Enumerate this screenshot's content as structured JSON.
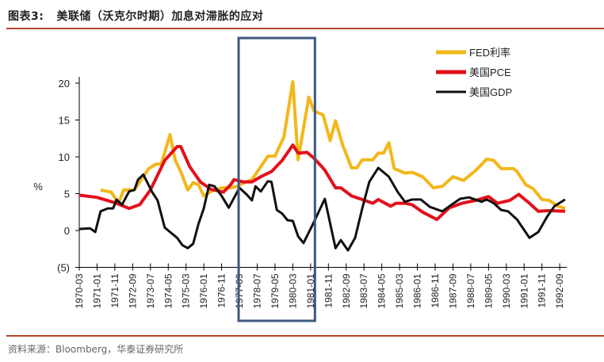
{
  "header": {
    "figure_number": "图表3:",
    "title": "美联储（沃克尔时期）加息对滞胀的应对"
  },
  "footer": {
    "source": "资料来源：Bloomberg，华泰证券研究所"
  },
  "chart_data": {
    "type": "line",
    "title": "",
    "xlabel": "",
    "ylabel": "%",
    "ylim": [
      -5,
      20
    ],
    "yticks": [
      20,
      15,
      10,
      5,
      0,
      -5
    ],
    "ytick_labels": [
      "20",
      "15",
      "10",
      "5",
      "0",
      "(5)"
    ],
    "negative_tick_color": "#d0021b",
    "xticks": [
      "1970-03",
      "1971-01",
      "1971-11",
      "1972-09",
      "1973-07",
      "1974-05",
      "1975-03",
      "1976-01",
      "1976-11",
      "1977-09",
      "1978-07",
      "1979-05",
      "1980-03",
      "1981-01",
      "1981-11",
      "1982-09",
      "1983-07",
      "1984-05",
      "1985-03",
      "1986-01",
      "1986-11",
      "1987-09",
      "1988-07",
      "1989-05",
      "1990-03",
      "1991-01",
      "1991-11",
      "1992-09"
    ],
    "grid": false,
    "legend_position": "top-right",
    "highlight_range": {
      "start": "1977-09",
      "end": "1981-03",
      "color": "#3d5a80"
    },
    "series": [
      {
        "name": "FED利率",
        "color": "#f2b71b",
        "x": [
          "1971-03",
          "1971-09",
          "1972-01",
          "1972-04",
          "1972-10",
          "1973-06",
          "1973-10",
          "1974-01",
          "1974-06",
          "1974-09",
          "1974-12",
          "1975-04",
          "1975-07",
          "1975-10",
          "1976-01",
          "1976-05",
          "1976-11",
          "1977-04",
          "1977-08",
          "1977-09",
          "1978-04",
          "1979-01",
          "1979-05",
          "1979-10",
          "1980-03",
          "1980-06",
          "1980-12",
          "1981-03",
          "1981-08",
          "1981-12",
          "1982-03",
          "1982-07",
          "1982-12",
          "1983-03",
          "1983-06",
          "1983-12",
          "1984-03",
          "1984-06",
          "1984-09",
          "1984-12",
          "1985-06",
          "1985-10",
          "1986-04",
          "1986-10",
          "1987-03",
          "1987-09",
          "1988-03",
          "1988-10",
          "1989-04",
          "1989-08",
          "1989-12",
          "1990-07",
          "1990-09",
          "1991-02",
          "1991-06",
          "1991-11",
          "1992-03",
          "1992-08",
          "1992-12"
        ],
        "y": [
          5.5,
          5.2,
          3.7,
          5.5,
          5.5,
          8.4,
          9.0,
          9.0,
          13.0,
          9.5,
          8.0,
          5.5,
          6.5,
          6.2,
          4.7,
          5.3,
          5.8,
          5.8,
          6.0,
          6.2,
          6.9,
          10.1,
          10.1,
          12.7,
          20.2,
          9.6,
          18.1,
          16.2,
          15.7,
          12.2,
          14.9,
          11.6,
          8.5,
          8.5,
          9.6,
          9.6,
          10.5,
          10.5,
          11.9,
          8.4,
          7.8,
          7.9,
          7.3,
          5.8,
          6.0,
          7.3,
          6.8,
          8.2,
          9.7,
          9.5,
          8.4,
          8.4,
          8.0,
          6.2,
          5.7,
          4.2,
          4.1,
          3.3,
          3.0
        ]
      },
      {
        "name": "美国PCE",
        "color": "#e3101b",
        "x": [
          "1970-03",
          "1971-01",
          "1971-12",
          "1972-07",
          "1973-01",
          "1973-07",
          "1974-03",
          "1974-10",
          "1974-12",
          "1975-05",
          "1975-11",
          "1976-05",
          "1976-12",
          "1977-04",
          "1977-06",
          "1977-11",
          "1978-04",
          "1978-09",
          "1979-03",
          "1979-09",
          "1980-03",
          "1980-06",
          "1980-11",
          "1981-03",
          "1981-09",
          "1982-03",
          "1982-06",
          "1982-12",
          "1983-06",
          "1983-12",
          "1984-03",
          "1984-10",
          "1985-01",
          "1985-06",
          "1985-10",
          "1986-04",
          "1986-12",
          "1987-07",
          "1988-02",
          "1988-10",
          "1989-05",
          "1989-10",
          "1990-05",
          "1990-10",
          "1991-04",
          "1991-09",
          "1992-03",
          "1992-12"
        ],
        "y": [
          4.8,
          4.5,
          3.7,
          3.0,
          3.5,
          5.5,
          9.5,
          11.4,
          11.4,
          8.7,
          6.6,
          5.6,
          5.2,
          6.2,
          6.9,
          6.6,
          6.6,
          7.3,
          8.0,
          9.5,
          11.6,
          10.5,
          10.6,
          9.8,
          8.2,
          5.8,
          5.8,
          4.7,
          4.2,
          3.7,
          4.2,
          3.3,
          3.7,
          3.7,
          3.5,
          2.5,
          1.5,
          3.1,
          3.7,
          4.1,
          4.6,
          3.7,
          4.1,
          4.9,
          3.7,
          2.6,
          2.7,
          2.6
        ]
      },
      {
        "name": "美国GDP",
        "color": "#111111",
        "x": [
          "1970-03",
          "1970-09",
          "1970-12",
          "1971-03",
          "1971-07",
          "1971-10",
          "1971-12",
          "1972-03",
          "1972-07",
          "1972-10",
          "1972-12",
          "1973-03",
          "1973-08",
          "1973-11",
          "1974-03",
          "1974-06",
          "1974-10",
          "1975-01",
          "1975-04",
          "1975-07",
          "1975-10",
          "1976-01",
          "1976-04",
          "1976-07",
          "1976-11",
          "1977-03",
          "1977-09",
          "1978-01",
          "1978-04",
          "1978-06",
          "1978-09",
          "1979-01",
          "1979-03",
          "1979-06",
          "1979-09",
          "1979-12",
          "1980-03",
          "1980-06",
          "1980-09",
          "1981-03",
          "1981-09",
          "1982-03",
          "1982-06",
          "1982-10",
          "1983-02",
          "1983-06",
          "1983-10",
          "1984-03",
          "1984-09",
          "1985-02",
          "1985-06",
          "1985-10",
          "1986-03",
          "1986-08",
          "1987-03",
          "1987-07",
          "1988-01",
          "1988-06",
          "1989-01",
          "1989-04",
          "1989-08",
          "1989-12",
          "1990-04",
          "1990-09",
          "1991-04",
          "1991-09",
          "1992-02",
          "1992-06",
          "1992-12"
        ],
        "y": [
          0.2,
          0.3,
          -0.2,
          2.6,
          3.0,
          3.0,
          4.2,
          3.5,
          5.3,
          5.5,
          6.9,
          7.6,
          5.2,
          4.1,
          0.4,
          -0.2,
          -1.0,
          -2.0,
          -2.4,
          -1.8,
          0.9,
          3.0,
          6.2,
          6.0,
          4.7,
          3.1,
          5.8,
          4.9,
          4.1,
          6.0,
          5.3,
          6.7,
          6.6,
          2.8,
          2.3,
          1.4,
          1.3,
          -0.8,
          -1.7,
          1.2,
          4.3,
          -2.4,
          -1.3,
          -2.7,
          -1.0,
          3.0,
          6.6,
          8.5,
          7.3,
          5.2,
          3.9,
          4.2,
          4.2,
          3.2,
          2.6,
          3.3,
          4.3,
          4.5,
          3.9,
          4.2,
          3.7,
          2.8,
          2.6,
          1.5,
          -1.0,
          -0.2,
          1.9,
          3.3,
          4.2
        ]
      }
    ]
  }
}
